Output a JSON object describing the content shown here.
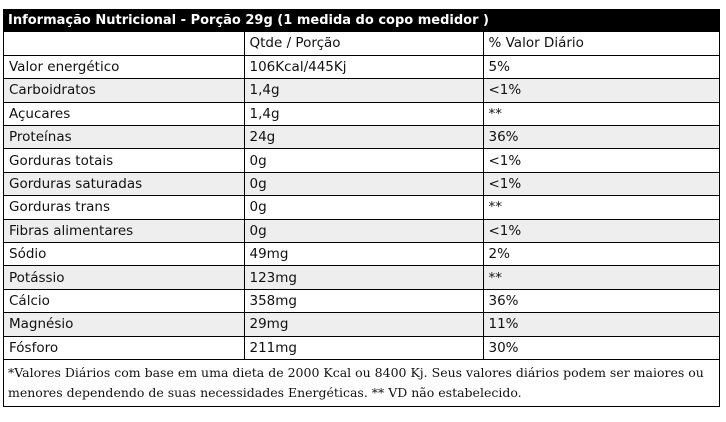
{
  "title": "Informação Nutricional - Porção 29g (1 medida do copo medidor )",
  "header": {
    "nutrient": "",
    "qty": "Qtde / Porção",
    "dv": "% Valor Diário"
  },
  "rows": [
    {
      "nutrient": "Valor energético",
      "qty": "106Kcal/445Kj",
      "dv": "5%"
    },
    {
      "nutrient": "Carboidratos",
      "qty": "1,4g",
      "dv": "<1%"
    },
    {
      "nutrient": "Açucares",
      "qty": "1,4g",
      "dv": "**"
    },
    {
      "nutrient": "Proteínas",
      "qty": "24g",
      "dv": "36%"
    },
    {
      "nutrient": "Gorduras totais",
      "qty": "0g",
      "dv": "<1%"
    },
    {
      "nutrient": "Gorduras saturadas",
      "qty": "0g",
      "dv": "<1%"
    },
    {
      "nutrient": "Gorduras trans",
      "qty": "0g",
      "dv": "**"
    },
    {
      "nutrient": "Fibras alimentares",
      "qty": "0g",
      "dv": "<1%"
    },
    {
      "nutrient": "Sódio",
      "qty": "49mg",
      "dv": "2%"
    },
    {
      "nutrient": "Potássio",
      "qty": "123mg",
      "dv": "**"
    },
    {
      "nutrient": "Cálcio",
      "qty": "358mg",
      "dv": "36%"
    },
    {
      "nutrient": "Magnésio",
      "qty": "29mg",
      "dv": "11%"
    },
    {
      "nutrient": "Fósforo",
      "qty": "211mg",
      "dv": "30%"
    }
  ],
  "footnote": "*Valores Diários com base em uma dieta de 2000 Kcal ou 8400 Kj. Seus valores diários podem ser maiores ou menores dependendo de suas necessidades Energéticas. ** VD não estabelecido."
}
